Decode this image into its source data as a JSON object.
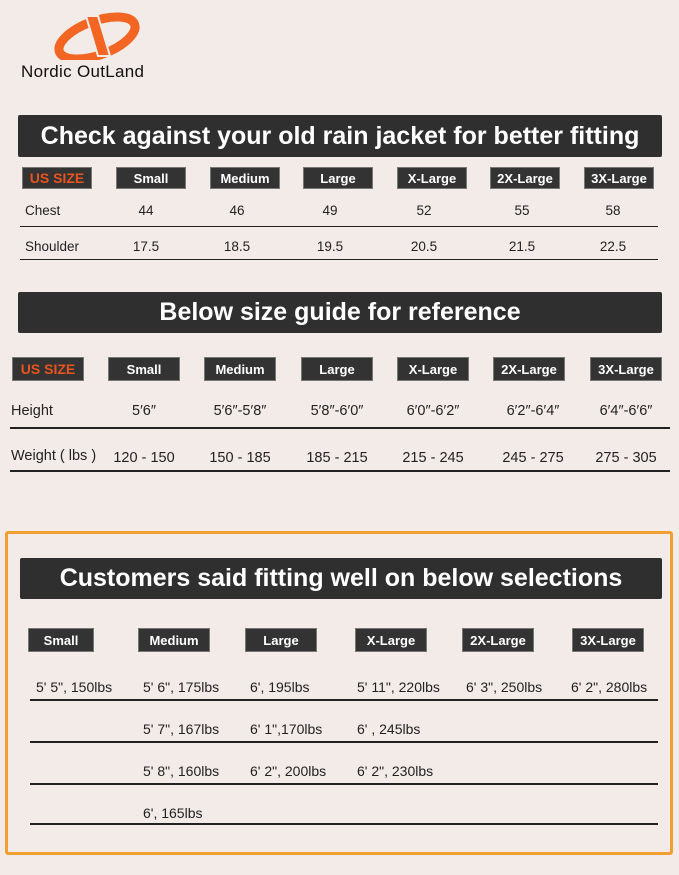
{
  "brand": {
    "name": "Nordic OutLand",
    "accent": "#f26522"
  },
  "section1": {
    "title": "Check against your old rain jacket for better fitting",
    "label_header": "US SIZE",
    "sizes": [
      "Small",
      "Medium",
      "Large",
      "X-Large",
      "2X-Large",
      "3X-Large"
    ],
    "rows": [
      {
        "label": "Chest",
        "values": [
          "44",
          "46",
          "49",
          "52",
          "55",
          "58"
        ]
      },
      {
        "label": "Shoulder",
        "values": [
          "17.5",
          "18.5",
          "19.5",
          "20.5",
          "21.5",
          "22.5"
        ]
      }
    ]
  },
  "section2": {
    "title": "Below size guide for reference",
    "label_header": "US SIZE",
    "sizes": [
      "Small",
      "Medium",
      "Large",
      "X-Large",
      "2X-Large",
      "3X-Large"
    ],
    "rows": [
      {
        "label": "Height",
        "values": [
          "5′6″",
          "5′6″-5′8″",
          "5′8″-6′0″",
          "6′0″-6′2″",
          "6′2″-6′4″",
          "6′4″-6′6″"
        ]
      },
      {
        "label": "Weight ( lbs )",
        "values": [
          "120 - 150",
          "150 - 185",
          "185 - 215",
          "215 - 245",
          "245 - 275",
          "275 - 305"
        ]
      }
    ]
  },
  "section3": {
    "title": "Customers said fitting well on below selections",
    "highlight_color": "#f0a030",
    "sizes": [
      "Small",
      "Medium",
      "Large",
      "X-Large",
      "2X-Large",
      "3X-Large"
    ],
    "rows": [
      [
        "5' 5\", 150lbs",
        "5' 6\", 175lbs",
        "6',  195lbs",
        "5' 11\", 220lbs",
        "6' 3\", 250lbs",
        "6' 2\", 280lbs"
      ],
      [
        "",
        "5' 7\", 167lbs",
        "6' 1\",170lbs",
        "6' , 245lbs",
        "",
        ""
      ],
      [
        "",
        "5' 8\", 160lbs",
        "6' 2\", 200lbs",
        "6' 2\", 230lbs",
        "",
        ""
      ],
      [
        "",
        "6',  165lbs",
        "",
        "",
        "",
        ""
      ]
    ]
  }
}
